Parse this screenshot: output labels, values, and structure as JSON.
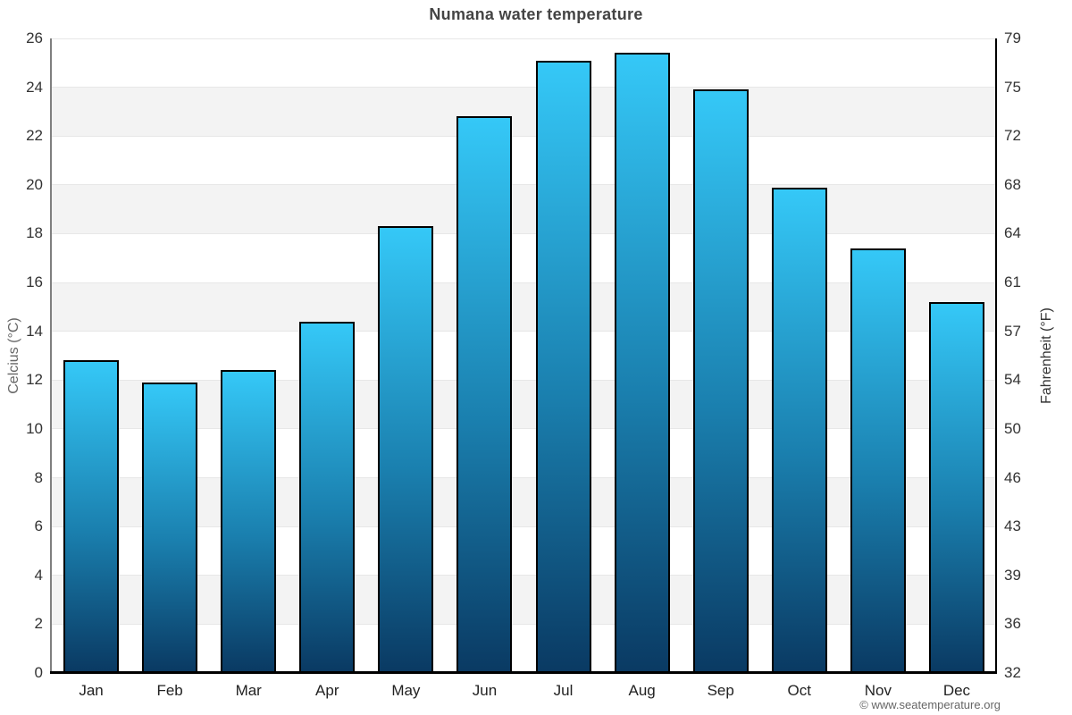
{
  "title": "Numana water temperature",
  "copyright": "© www.seatemperature.org",
  "chart_data": {
    "type": "bar",
    "title": "Numana water temperature",
    "categories": [
      "Jan",
      "Feb",
      "Mar",
      "Apr",
      "May",
      "Jun",
      "Jul",
      "Aug",
      "Sep",
      "Oct",
      "Nov",
      "Dec"
    ],
    "values": [
      12.8,
      11.9,
      12.4,
      14.4,
      18.3,
      22.8,
      25.1,
      25.4,
      23.9,
      19.9,
      17.4,
      15.2
    ],
    "ylabel_left": "Celcius (°C)",
    "ylabel_right": "Fahrenheit (°F)",
    "yticks_left": [
      0,
      2,
      4,
      6,
      8,
      10,
      12,
      14,
      16,
      18,
      20,
      22,
      24,
      26
    ],
    "yticks_right": [
      32,
      36,
      39,
      43,
      46,
      50,
      54,
      57,
      61,
      64,
      68,
      72,
      75,
      79
    ],
    "ylim": [
      0,
      26
    ],
    "grid": true,
    "legend": "none",
    "band_ranges": [
      [
        2,
        4
      ],
      [
        6,
        8
      ],
      [
        10,
        12
      ],
      [
        14,
        16
      ],
      [
        18,
        20
      ],
      [
        22,
        24
      ]
    ],
    "colors": {
      "bar_top": "#35c8f7",
      "bar_bottom": "#0a3a63",
      "bar_border": "#000000",
      "band": "#f3f3f3",
      "gridline": "#e7e7e7",
      "axis_left": "#7f7f7f",
      "axis_bottom": "#000000",
      "title_text": "#444444",
      "tick_text": "#333333"
    }
  }
}
